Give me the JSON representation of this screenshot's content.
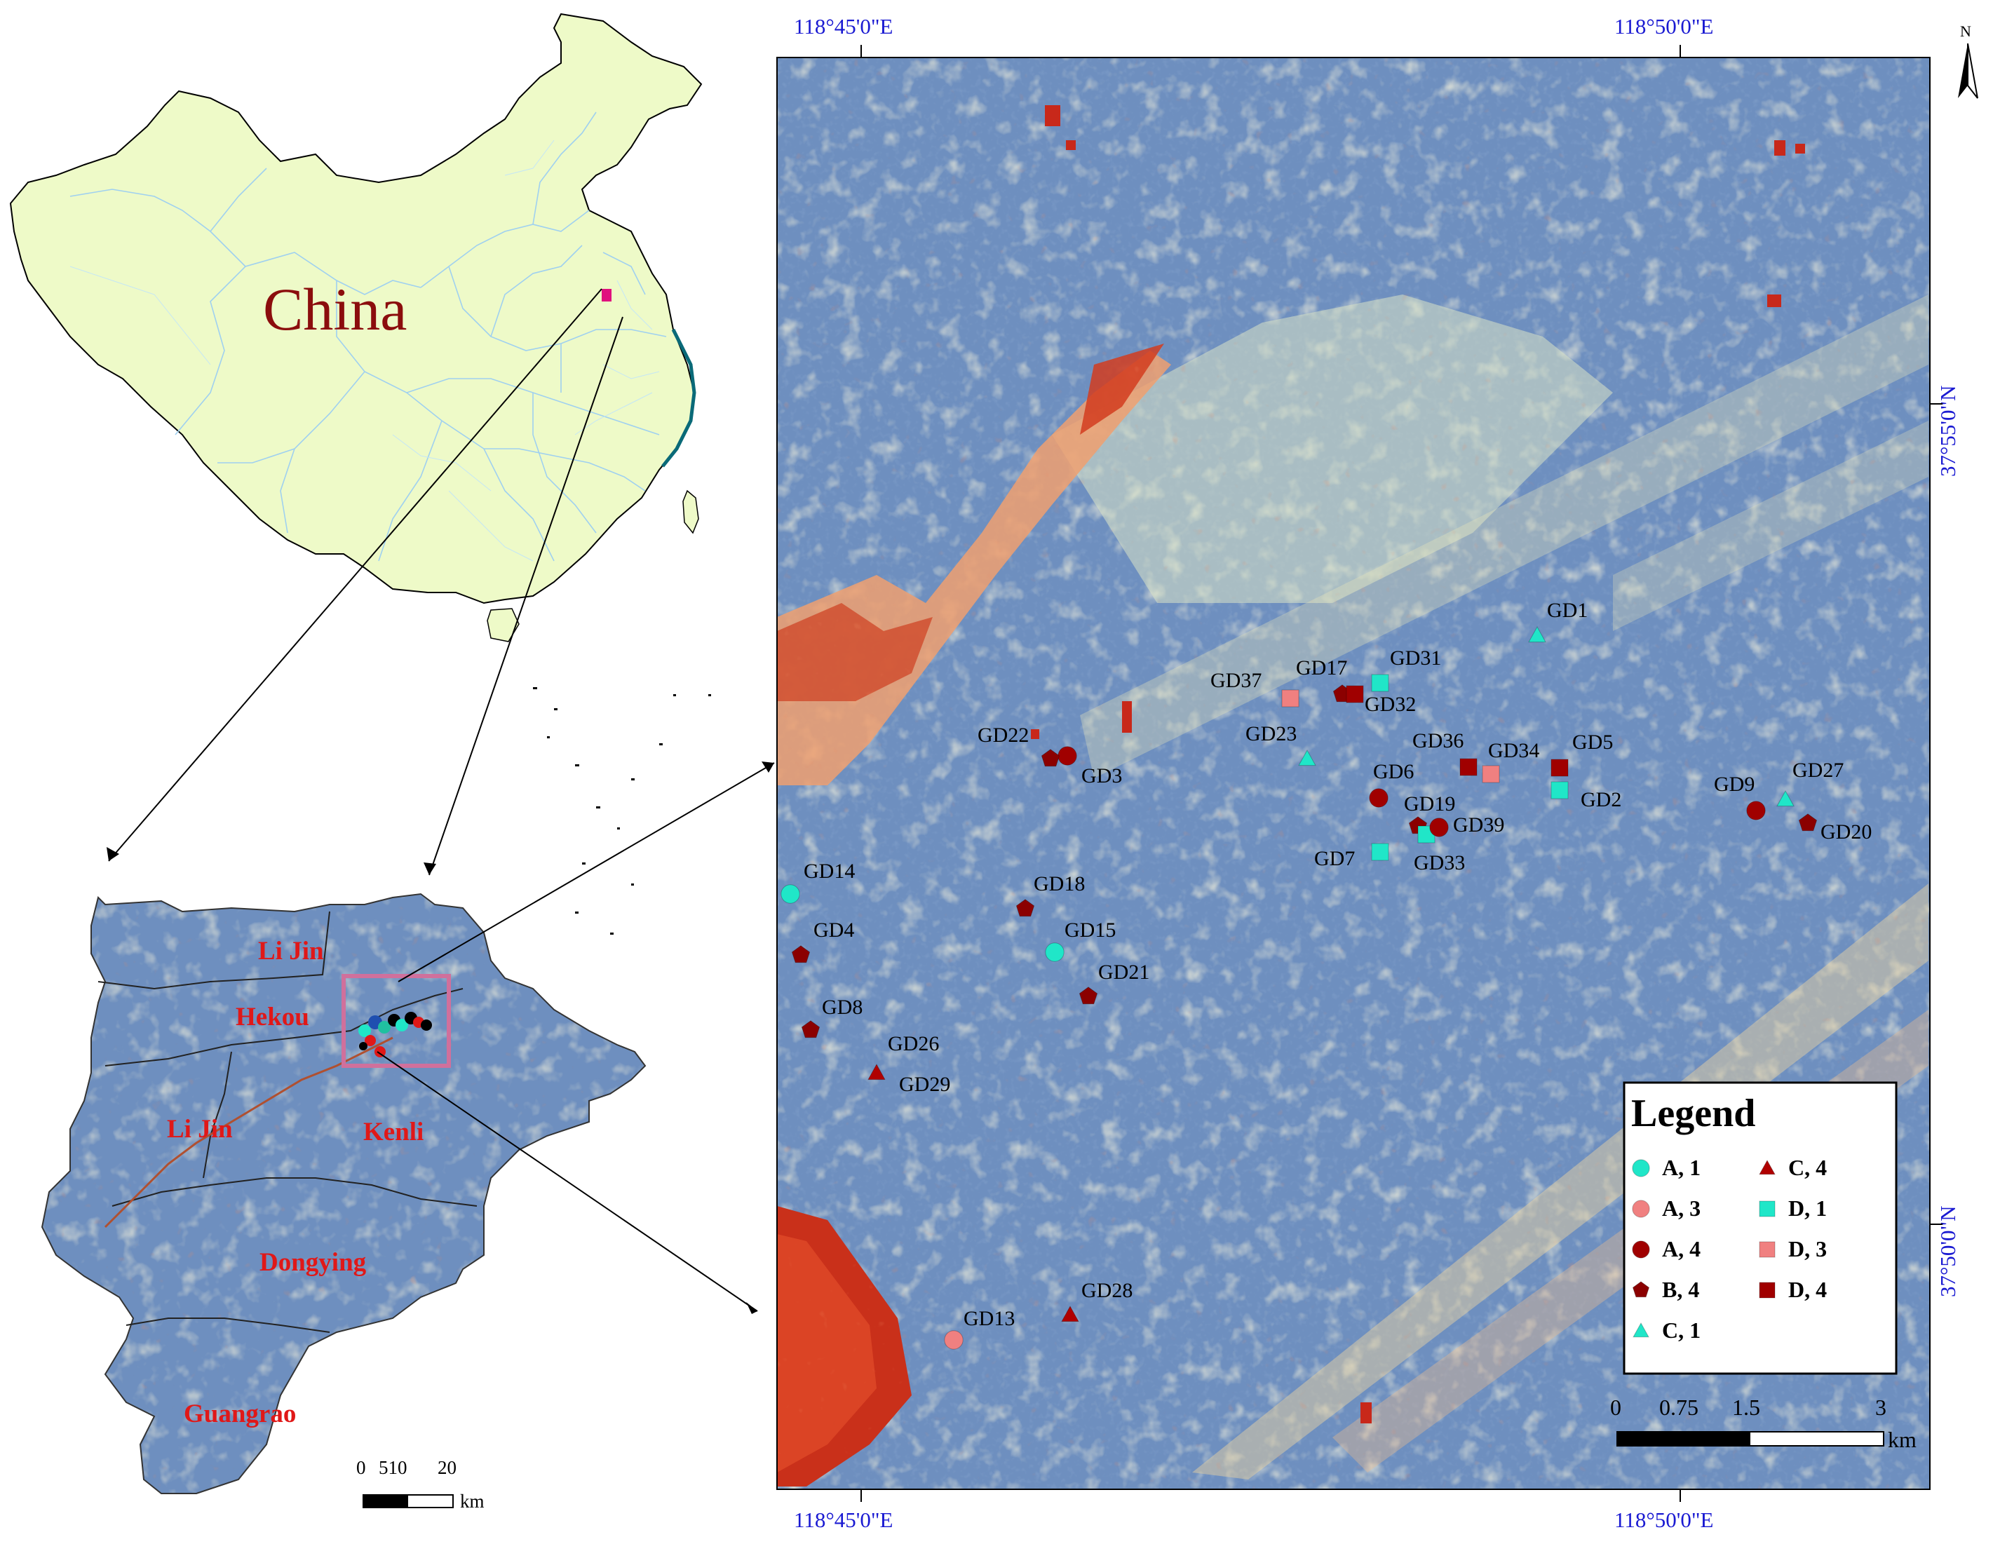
{
  "china_panel": {
    "label": "China"
  },
  "county_panel": {
    "regions": [
      {
        "name": "Li Jin"
      },
      {
        "name": "Hekou"
      },
      {
        "name": "Li Jin"
      },
      {
        "name": "Kenli"
      },
      {
        "name": "Dongying"
      },
      {
        "name": "Guangrao"
      }
    ],
    "scalebar": {
      "ticks": [
        "0",
        "510",
        "20"
      ],
      "unit": "km"
    }
  },
  "main_map": {
    "top_coords": [
      "118°45'0\"E",
      "118°50'0\"E"
    ],
    "bottom_coords": [
      "118°45'0\"E",
      "118°50'0\"E"
    ],
    "right_coords": [
      "37°55'0\"N",
      "37°50'0\"N"
    ],
    "north_arrow": {
      "label": "N"
    },
    "sites": [
      {
        "id": "GD1",
        "type": "C1"
      },
      {
        "id": "GD2",
        "type": "D1"
      },
      {
        "id": "GD3",
        "type": "A4"
      },
      {
        "id": "GD4",
        "type": "B4"
      },
      {
        "id": "GD5",
        "type": "D4"
      },
      {
        "id": "GD6",
        "type": "A4"
      },
      {
        "id": "GD7",
        "type": "D1"
      },
      {
        "id": "GD8",
        "type": "B4"
      },
      {
        "id": "GD9",
        "type": "A4"
      },
      {
        "id": "GD13",
        "type": "A3"
      },
      {
        "id": "GD14",
        "type": "A1"
      },
      {
        "id": "GD15",
        "type": "A1"
      },
      {
        "id": "GD17",
        "type": "B4"
      },
      {
        "id": "GD18",
        "type": "B4"
      },
      {
        "id": "GD19",
        "type": "B4"
      },
      {
        "id": "GD20",
        "type": "B4"
      },
      {
        "id": "GD21",
        "type": "B4"
      },
      {
        "id": "GD22",
        "type": "B4"
      },
      {
        "id": "GD23",
        "type": "C1"
      },
      {
        "id": "GD26",
        "type": ""
      },
      {
        "id": "GD27",
        "type": "C1"
      },
      {
        "id": "GD28",
        "type": "C4"
      },
      {
        "id": "GD29",
        "type": "C4"
      },
      {
        "id": "GD31",
        "type": "D1"
      },
      {
        "id": "GD32",
        "type": "D4"
      },
      {
        "id": "GD33",
        "type": "D1"
      },
      {
        "id": "GD34",
        "type": "D3"
      },
      {
        "id": "GD36",
        "type": "D4"
      },
      {
        "id": "GD37",
        "type": "D3"
      },
      {
        "id": "GD39",
        "type": "A4"
      }
    ],
    "legend": {
      "title": "Legend",
      "items": [
        {
          "label": "A, 1",
          "symbol": "circle",
          "color": "#20e6c8"
        },
        {
          "label": "A, 3",
          "symbol": "circle",
          "color": "#f08080"
        },
        {
          "label": "A, 4",
          "symbol": "circle",
          "color": "#a00000"
        },
        {
          "label": "B, 4",
          "symbol": "pentagon",
          "color": "#8b0000"
        },
        {
          "label": "C, 1",
          "symbol": "triangle",
          "color": "#20e6c8"
        },
        {
          "label": "C, 4",
          "symbol": "triangle",
          "color": "#b00000"
        },
        {
          "label": "D, 1",
          "symbol": "square",
          "color": "#20e6c8"
        },
        {
          "label": "D, 3",
          "symbol": "square",
          "color": "#f08080"
        },
        {
          "label": "D, 4",
          "symbol": "square",
          "color": "#a00000"
        }
      ]
    },
    "scalebar": {
      "ticks": [
        "0",
        "0.75",
        "1.5",
        "3"
      ],
      "unit": "km"
    }
  },
  "colors": {
    "land_yellow": "#eefac8",
    "raster_blue": "#6e8fbf",
    "raster_red": "#d23c1e",
    "coord_blue": "#1a1ad2",
    "label_red": "#e01818",
    "frame_pink": "#d0709c"
  }
}
